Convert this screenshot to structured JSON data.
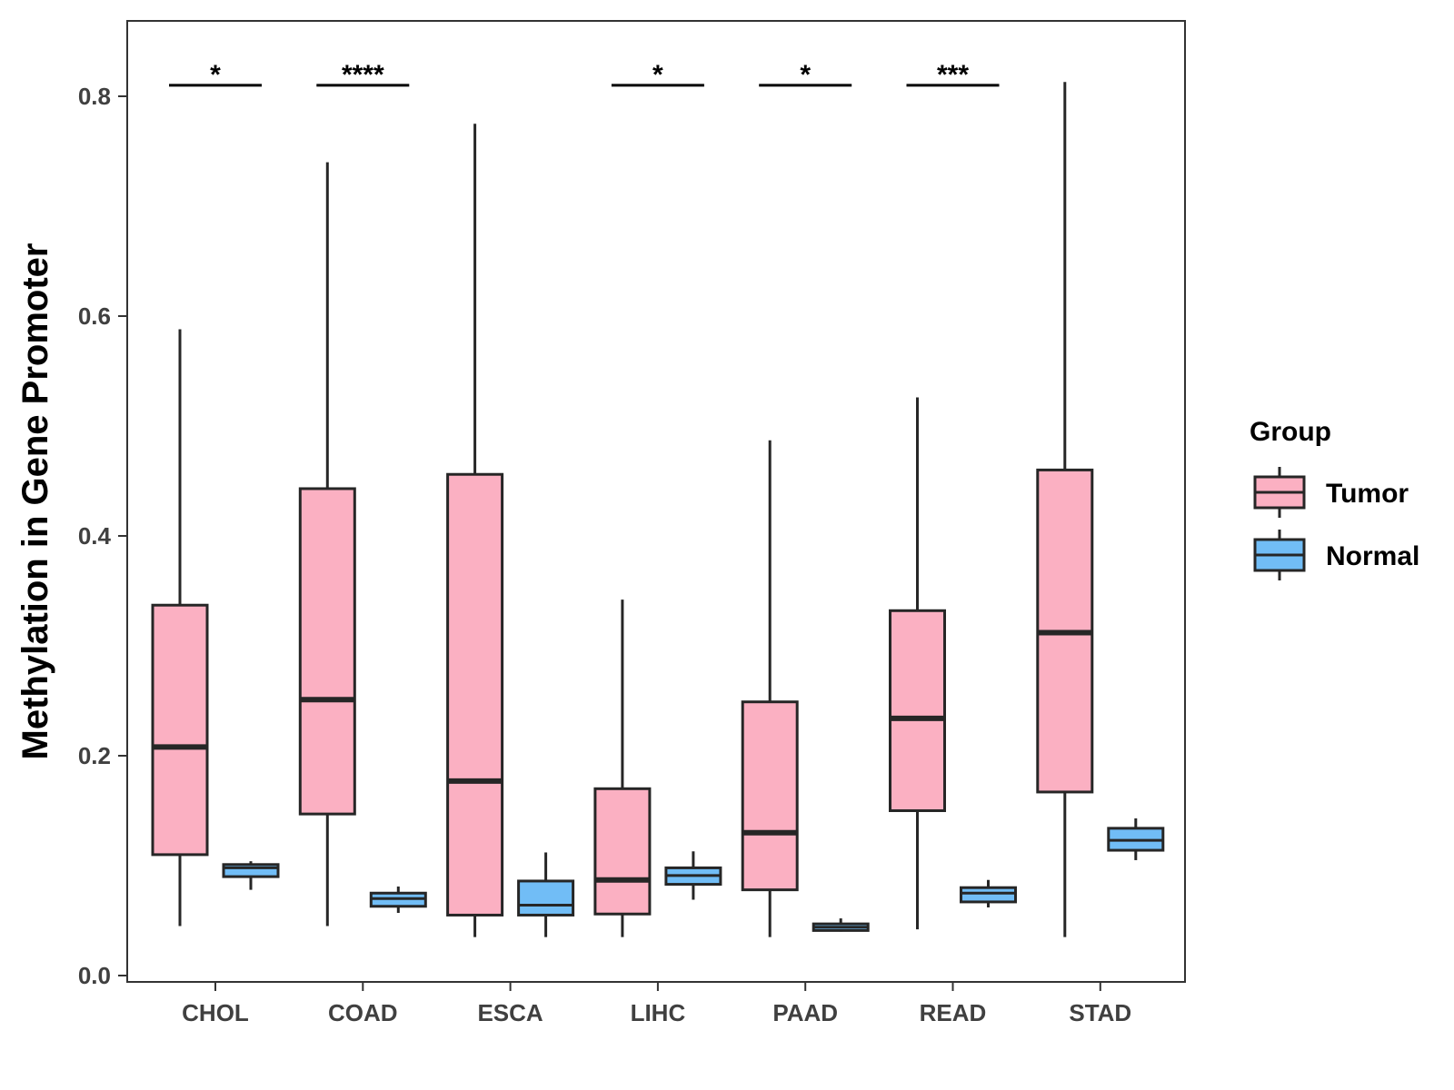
{
  "chart_data": {
    "type": "boxplot",
    "title": "",
    "xlabel": "",
    "ylabel": "Methylation in Gene Promoter",
    "ylim": [
      -0.005,
      0.87
    ],
    "yticks": [
      "0.0",
      "0.2",
      "0.4",
      "0.6",
      "0.8"
    ],
    "categories": [
      "CHOL",
      "COAD",
      "ESCA",
      "LIHC",
      "PAAD",
      "READ",
      "STAD"
    ],
    "legend": {
      "title": "Group",
      "position": "right",
      "entries": [
        {
          "name": "Tumor",
          "color": "#fbb0c2"
        },
        {
          "name": "Normal",
          "color": "#71bdf6"
        }
      ]
    },
    "series": [
      {
        "name": "Tumor",
        "color": "#fbb0c2",
        "boxes": [
          {
            "category": "CHOL",
            "min": 0.045,
            "q1": 0.11,
            "median": 0.208,
            "q3": 0.337,
            "max": 0.588
          },
          {
            "category": "COAD",
            "min": 0.045,
            "q1": 0.147,
            "median": 0.251,
            "q3": 0.443,
            "max": 0.74
          },
          {
            "category": "ESCA",
            "min": 0.035,
            "q1": 0.055,
            "median": 0.177,
            "q3": 0.456,
            "max": 0.775
          },
          {
            "category": "LIHC",
            "min": 0.035,
            "q1": 0.056,
            "median": 0.087,
            "q3": 0.17,
            "max": 0.342
          },
          {
            "category": "PAAD",
            "min": 0.035,
            "q1": 0.078,
            "median": 0.13,
            "q3": 0.249,
            "max": 0.487
          },
          {
            "category": "READ",
            "min": 0.042,
            "q1": 0.15,
            "median": 0.234,
            "q3": 0.332,
            "max": 0.526
          },
          {
            "category": "STAD",
            "min": 0.035,
            "q1": 0.167,
            "median": 0.312,
            "q3": 0.46,
            "max": 0.813
          }
        ]
      },
      {
        "name": "Normal",
        "color": "#71bdf6",
        "boxes": [
          {
            "category": "CHOL",
            "min": 0.078,
            "q1": 0.09,
            "median": 0.098,
            "q3": 0.101,
            "max": 0.104
          },
          {
            "category": "COAD",
            "min": 0.057,
            "q1": 0.063,
            "median": 0.07,
            "q3": 0.075,
            "max": 0.081
          },
          {
            "category": "ESCA",
            "min": 0.035,
            "q1": 0.055,
            "median": 0.064,
            "q3": 0.086,
            "max": 0.112
          },
          {
            "category": "LIHC",
            "min": 0.069,
            "q1": 0.083,
            "median": 0.091,
            "q3": 0.098,
            "max": 0.113
          },
          {
            "category": "PAAD",
            "min": 0.04,
            "q1": 0.041,
            "median": 0.044,
            "q3": 0.047,
            "max": 0.052
          },
          {
            "category": "READ",
            "min": 0.062,
            "q1": 0.067,
            "median": 0.075,
            "q3": 0.08,
            "max": 0.087
          },
          {
            "category": "STAD",
            "min": 0.105,
            "q1": 0.114,
            "median": 0.123,
            "q3": 0.134,
            "max": 0.143
          }
        ]
      }
    ],
    "significance": [
      {
        "category": "CHOL",
        "label": "*",
        "y": 0.81
      },
      {
        "category": "COAD",
        "label": "****",
        "y": 0.81
      },
      {
        "category": "LIHC",
        "label": "*",
        "y": 0.81
      },
      {
        "category": "PAAD",
        "label": "*",
        "y": 0.81
      },
      {
        "category": "READ",
        "label": "***",
        "y": 0.81
      }
    ]
  }
}
